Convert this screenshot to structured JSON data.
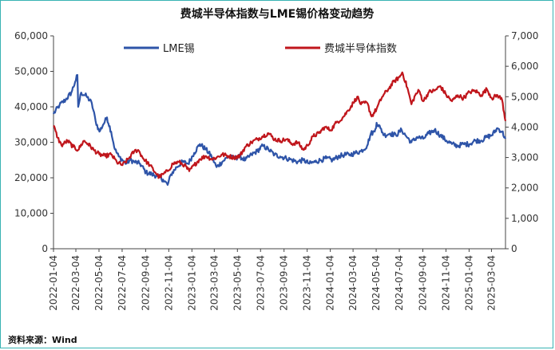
{
  "chart_data": {
    "type": "line",
    "title": "费城半导体指数与LME锡价格变动趋势",
    "source": "资料来源：Wind",
    "left_axis": {
      "min": 0,
      "max": 60000,
      "ticks": [
        "0",
        "10,000",
        "20,000",
        "30,000",
        "40,000",
        "50,000",
        "60,000"
      ]
    },
    "right_axis": {
      "min": 0,
      "max": 7000,
      "ticks": [
        "0",
        "1,000",
        "2,000",
        "3,000",
        "4,000",
        "5,000",
        "6,000",
        "7,000"
      ]
    },
    "x_ticks": [
      "2022-01-04",
      "2022-03-04",
      "2022-05-04",
      "2022-07-04",
      "2022-09-04",
      "2022-11-04",
      "2023-01-04",
      "2023-03-04",
      "2023-05-04",
      "2023-07-04",
      "2023-09-04",
      "2023-11-04",
      "2024-01-04",
      "2024-03-04",
      "2024-05-04",
      "2024-07-04",
      "2024-09-04",
      "2024-11-04",
      "2025-01-04",
      "2025-03-04"
    ],
    "x_start": "2022-01-04",
    "x_end": "2025-04-10",
    "series": [
      {
        "name": "LME锡",
        "axis": "left",
        "color": "#2e54a8",
        "points": [
          [
            "2022-01-04",
            38000
          ],
          [
            "2022-01-20",
            40500
          ],
          [
            "2022-02-05",
            42000
          ],
          [
            "2022-02-20",
            44000
          ],
          [
            "2022-03-02",
            47000
          ],
          [
            "2022-03-08",
            49000
          ],
          [
            "2022-03-10",
            40000
          ],
          [
            "2022-03-18",
            44000
          ],
          [
            "2022-04-01",
            43000
          ],
          [
            "2022-04-15",
            41000
          ],
          [
            "2022-04-25",
            36000
          ],
          [
            "2022-05-05",
            33000
          ],
          [
            "2022-05-15",
            35000
          ],
          [
            "2022-05-25",
            37000
          ],
          [
            "2022-06-05",
            33000
          ],
          [
            "2022-06-15",
            28000
          ],
          [
            "2022-06-25",
            26000
          ],
          [
            "2022-07-05",
            25000
          ],
          [
            "2022-07-15",
            24000
          ],
          [
            "2022-07-25",
            25000
          ],
          [
            "2022-08-05",
            24500
          ],
          [
            "2022-08-20",
            24000
          ],
          [
            "2022-09-05",
            21500
          ],
          [
            "2022-09-20",
            21000
          ],
          [
            "2022-10-05",
            20500
          ],
          [
            "2022-10-20",
            19500
          ],
          [
            "2022-11-01",
            18000
          ],
          [
            "2022-11-10",
            21000
          ],
          [
            "2022-11-25",
            23000
          ],
          [
            "2022-12-10",
            24500
          ],
          [
            "2022-12-25",
            24000
          ],
          [
            "2023-01-10",
            27000
          ],
          [
            "2023-01-25",
            29500
          ],
          [
            "2023-02-10",
            28000
          ],
          [
            "2023-02-25",
            26000
          ],
          [
            "2023-03-10",
            23000
          ],
          [
            "2023-03-25",
            24500
          ],
          [
            "2023-04-10",
            26000
          ],
          [
            "2023-04-25",
            25500
          ],
          [
            "2023-05-10",
            26000
          ],
          [
            "2023-05-25",
            25000
          ],
          [
            "2023-06-10",
            26500
          ],
          [
            "2023-06-25",
            27500
          ],
          [
            "2023-07-10",
            29000
          ],
          [
            "2023-07-25",
            28000
          ],
          [
            "2023-08-10",
            26500
          ],
          [
            "2023-08-25",
            26000
          ],
          [
            "2023-09-10",
            25500
          ],
          [
            "2023-09-25",
            25000
          ],
          [
            "2023-10-10",
            24500
          ],
          [
            "2023-10-25",
            25000
          ],
          [
            "2023-11-10",
            24000
          ],
          [
            "2023-11-25",
            24500
          ],
          [
            "2023-12-10",
            25000
          ],
          [
            "2023-12-25",
            25500
          ],
          [
            "2024-01-10",
            25000
          ],
          [
            "2024-01-25",
            26000
          ],
          [
            "2024-02-10",
            26500
          ],
          [
            "2024-02-25",
            26500
          ],
          [
            "2024-03-10",
            27000
          ],
          [
            "2024-03-25",
            27500
          ],
          [
            "2024-04-10",
            29000
          ],
          [
            "2024-04-20",
            32500
          ],
          [
            "2024-04-30",
            33000
          ],
          [
            "2024-05-05",
            35500
          ],
          [
            "2024-05-15",
            34000
          ],
          [
            "2024-05-25",
            32000
          ],
          [
            "2024-06-10",
            32500
          ],
          [
            "2024-06-25",
            32000
          ],
          [
            "2024-07-10",
            33500
          ],
          [
            "2024-07-20",
            32000
          ],
          [
            "2024-08-05",
            30000
          ],
          [
            "2024-08-20",
            31500
          ],
          [
            "2024-09-05",
            31000
          ],
          [
            "2024-09-20",
            32500
          ],
          [
            "2024-10-05",
            33500
          ],
          [
            "2024-10-20",
            32000
          ],
          [
            "2024-11-05",
            30500
          ],
          [
            "2024-11-20",
            29500
          ],
          [
            "2024-12-05",
            29000
          ],
          [
            "2024-12-20",
            29500
          ],
          [
            "2025-01-05",
            29500
          ],
          [
            "2025-01-20",
            30500
          ],
          [
            "2025-02-05",
            30500
          ],
          [
            "2025-02-20",
            31500
          ],
          [
            "2025-03-05",
            32000
          ],
          [
            "2025-03-20",
            34000
          ],
          [
            "2025-04-01",
            33000
          ],
          [
            "2025-04-10",
            31000
          ]
        ]
      },
      {
        "name": "费城半导体指数",
        "axis": "right",
        "color": "#c0161c",
        "points": [
          [
            "2022-01-04",
            4050
          ],
          [
            "2022-01-15",
            3650
          ],
          [
            "2022-01-25",
            3400
          ],
          [
            "2022-02-10",
            3550
          ],
          [
            "2022-02-25",
            3350
          ],
          [
            "2022-03-10",
            3250
          ],
          [
            "2022-03-25",
            3550
          ],
          [
            "2022-04-05",
            3450
          ],
          [
            "2022-04-20",
            3250
          ],
          [
            "2022-05-05",
            3100
          ],
          [
            "2022-05-20",
            3050
          ],
          [
            "2022-06-05",
            3100
          ],
          [
            "2022-06-20",
            2850
          ],
          [
            "2022-07-05",
            2750
          ],
          [
            "2022-07-20",
            2950
          ],
          [
            "2022-08-05",
            3200
          ],
          [
            "2022-08-15",
            3250
          ],
          [
            "2022-08-30",
            2950
          ],
          [
            "2022-09-15",
            2750
          ],
          [
            "2022-09-30",
            2500
          ],
          [
            "2022-10-10",
            2350
          ],
          [
            "2022-10-20",
            2450
          ],
          [
            "2022-11-01",
            2550
          ],
          [
            "2022-11-15",
            2800
          ],
          [
            "2022-12-01",
            2850
          ],
          [
            "2022-12-15",
            2750
          ],
          [
            "2022-12-28",
            2550
          ],
          [
            "2023-01-10",
            2750
          ],
          [
            "2023-01-25",
            2950
          ],
          [
            "2023-02-10",
            3050
          ],
          [
            "2023-02-25",
            2950
          ],
          [
            "2023-03-10",
            3000
          ],
          [
            "2023-03-25",
            3100
          ],
          [
            "2023-04-10",
            3050
          ],
          [
            "2023-04-25",
            3000
          ],
          [
            "2023-05-10",
            3050
          ],
          [
            "2023-05-25",
            3350
          ],
          [
            "2023-06-10",
            3500
          ],
          [
            "2023-06-25",
            3600
          ],
          [
            "2023-07-10",
            3700
          ],
          [
            "2023-07-25",
            3800
          ],
          [
            "2023-08-10",
            3600
          ],
          [
            "2023-08-25",
            3550
          ],
          [
            "2023-09-10",
            3600
          ],
          [
            "2023-09-25",
            3450
          ],
          [
            "2023-10-10",
            3500
          ],
          [
            "2023-10-25",
            3250
          ],
          [
            "2023-11-05",
            3400
          ],
          [
            "2023-11-20",
            3700
          ],
          [
            "2023-12-05",
            3800
          ],
          [
            "2023-12-20",
            4000
          ],
          [
            "2024-01-05",
            3900
          ],
          [
            "2024-01-20",
            4150
          ],
          [
            "2024-02-05",
            4300
          ],
          [
            "2024-02-20",
            4550
          ],
          [
            "2024-03-05",
            4800
          ],
          [
            "2024-03-15",
            5000
          ],
          [
            "2024-03-25",
            4750
          ],
          [
            "2024-04-10",
            4800
          ],
          [
            "2024-04-22",
            4350
          ],
          [
            "2024-05-05",
            4600
          ],
          [
            "2024-05-20",
            5000
          ],
          [
            "2024-06-05",
            5250
          ],
          [
            "2024-06-20",
            5500
          ],
          [
            "2024-07-05",
            5650
          ],
          [
            "2024-07-12",
            5800
          ],
          [
            "2024-07-25",
            5300
          ],
          [
            "2024-08-05",
            4750
          ],
          [
            "2024-08-15",
            5050
          ],
          [
            "2024-08-25",
            5200
          ],
          [
            "2024-09-05",
            4850
          ],
          [
            "2024-09-20",
            5150
          ],
          [
            "2024-10-05",
            5200
          ],
          [
            "2024-10-20",
            5350
          ],
          [
            "2024-11-05",
            5050
          ],
          [
            "2024-11-20",
            4850
          ],
          [
            "2024-12-05",
            5050
          ],
          [
            "2024-12-20",
            4950
          ],
          [
            "2025-01-05",
            5150
          ],
          [
            "2025-01-20",
            5200
          ],
          [
            "2025-02-05",
            5050
          ],
          [
            "2025-02-20",
            5250
          ],
          [
            "2025-03-05",
            4950
          ],
          [
            "2025-03-20",
            5050
          ],
          [
            "2025-04-01",
            4900
          ],
          [
            "2025-04-10",
            4200
          ]
        ]
      }
    ]
  }
}
